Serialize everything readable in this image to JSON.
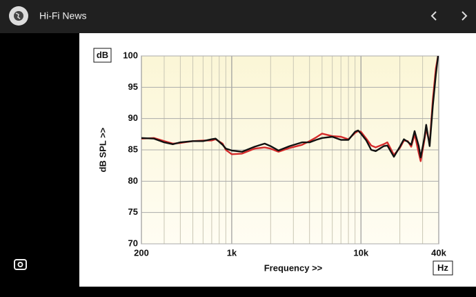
{
  "header": {
    "title": "Hi-Fi News"
  },
  "chart_data": {
    "type": "line",
    "x_label": "Frequency >>",
    "y_label": "dB SPL >>",
    "y_unit": "dB",
    "x_unit": "Hz",
    "log_x": true,
    "grid": true,
    "xlim": [
      200,
      40000
    ],
    "ylim": [
      70,
      100
    ],
    "xticks": [
      200,
      {
        "value": 1000,
        "label": "1k"
      },
      {
        "value": 10000,
        "label": "10k"
      },
      {
        "value": 40000,
        "label": "40k"
      }
    ],
    "xgrid": [
      300,
      400,
      500,
      600,
      700,
      800,
      900,
      2000,
      3000,
      4000,
      5000,
      6000,
      7000,
      8000,
      9000,
      20000,
      30000
    ],
    "yticks": [
      70,
      75,
      80,
      85,
      90,
      95,
      100
    ],
    "x": [
      200,
      250,
      300,
      350,
      400,
      500,
      600,
      700,
      750,
      850,
      900,
      1000,
      1200,
      1500,
      1800,
      2000,
      2300,
      2800,
      3500,
      4000,
      4500,
      5000,
      6000,
      7000,
      8000,
      9000,
      9500,
      10000,
      11000,
      12000,
      13000,
      15000,
      16000,
      18000,
      20000,
      21500,
      23000,
      24500,
      26000,
      28000,
      29000,
      31000,
      32000,
      34000,
      36000,
      38000,
      39500
    ],
    "series": [
      {
        "color": "#d42a2a",
        "values": [
          86.8,
          86.9,
          86.4,
          86.0,
          86.1,
          86.4,
          86.5,
          86.5,
          86.7,
          86.0,
          85.0,
          84.3,
          84.4,
          85.2,
          85.4,
          85.2,
          84.7,
          85.3,
          85.8,
          86.4,
          87.0,
          87.6,
          87.2,
          87.1,
          86.7,
          87.7,
          88.0,
          87.9,
          86.8,
          85.7,
          85.4,
          85.9,
          86.2,
          84.2,
          85.3,
          86.5,
          86.4,
          85.5,
          87.5,
          84.5,
          83.2,
          86.6,
          88.4,
          86.0,
          93,
          98,
          100
        ]
      },
      {
        "color": "#111111",
        "values": [
          86.9,
          86.8,
          86.2,
          85.9,
          86.2,
          86.4,
          86.4,
          86.7,
          86.8,
          85.8,
          85.2,
          84.9,
          84.7,
          85.5,
          86.0,
          85.6,
          84.9,
          85.6,
          86.2,
          86.2,
          86.6,
          86.9,
          87.1,
          86.6,
          86.6,
          87.9,
          88.1,
          87.6,
          86.5,
          85.0,
          84.8,
          85.6,
          85.7,
          83.9,
          85.5,
          86.7,
          86.3,
          85.8,
          88.0,
          85.6,
          83.8,
          87.0,
          89.0,
          85.6,
          92,
          97,
          100
        ]
      }
    ]
  }
}
